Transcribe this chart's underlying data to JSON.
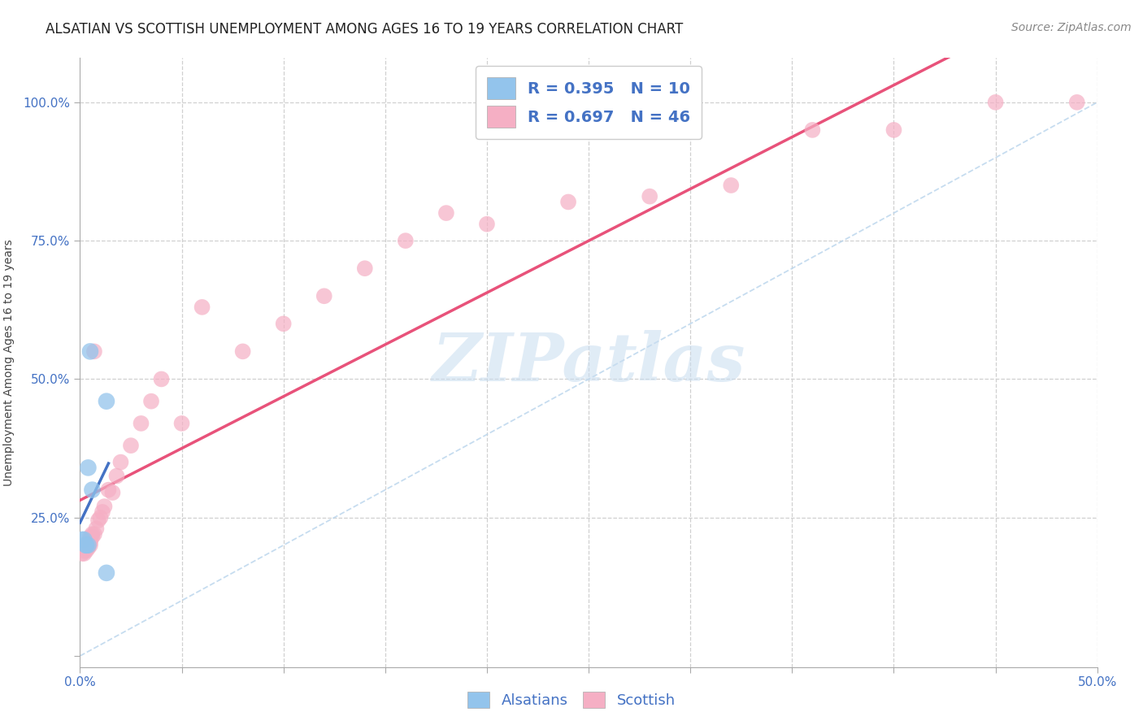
{
  "title": "ALSATIAN VS SCOTTISH UNEMPLOYMENT AMONG AGES 16 TO 19 YEARS CORRELATION CHART",
  "source": "Source: ZipAtlas.com",
  "ylabel": "Unemployment Among Ages 16 to 19 years",
  "xlim": [
    0.0,
    0.5
  ],
  "ylim": [
    -0.02,
    1.08
  ],
  "color_alsatian": "#93c4ec",
  "color_scottish": "#f5afc4",
  "color_alsatian_line": "#4472c4",
  "color_scottish_line": "#e8527a",
  "color_diag_line": "#b8d4ec",
  "color_text_blue": "#4472c4",
  "color_grid": "#d0d0d0",
  "background_color": "#ffffff",
  "legend_r_alsatian": "R = 0.395",
  "legend_n_alsatian": "N = 10",
  "legend_r_scottish": "R = 0.697",
  "legend_n_scottish": "N = 46",
  "watermark": "ZIPatlas",
  "title_fontsize": 12,
  "axis_label_fontsize": 10,
  "tick_fontsize": 11,
  "legend_fontsize": 14,
  "source_fontsize": 10,
  "alsatian_x": [
    0.001,
    0.002,
    0.003,
    0.003,
    0.004,
    0.004,
    0.005,
    0.006,
    0.013,
    0.013
  ],
  "alsatian_y": [
    0.21,
    0.21,
    0.2,
    0.2,
    0.34,
    0.2,
    0.55,
    0.3,
    0.46,
    0.15
  ],
  "scottish_x": [
    0.001,
    0.002,
    0.002,
    0.003,
    0.003,
    0.003,
    0.004,
    0.004,
    0.004,
    0.005,
    0.005,
    0.005,
    0.005,
    0.006,
    0.006,
    0.007,
    0.007,
    0.008,
    0.009,
    0.01,
    0.011,
    0.012,
    0.014,
    0.016,
    0.018,
    0.02,
    0.025,
    0.03,
    0.035,
    0.04,
    0.05,
    0.06,
    0.08,
    0.1,
    0.12,
    0.14,
    0.16,
    0.18,
    0.2,
    0.24,
    0.28,
    0.32,
    0.36,
    0.4,
    0.45,
    0.49
  ],
  "scottish_y": [
    0.185,
    0.19,
    0.185,
    0.19,
    0.2,
    0.195,
    0.195,
    0.2,
    0.2,
    0.2,
    0.205,
    0.21,
    0.215,
    0.215,
    0.22,
    0.55,
    0.22,
    0.23,
    0.245,
    0.25,
    0.26,
    0.27,
    0.3,
    0.295,
    0.325,
    0.35,
    0.38,
    0.42,
    0.46,
    0.5,
    0.42,
    0.63,
    0.55,
    0.6,
    0.65,
    0.7,
    0.75,
    0.8,
    0.78,
    0.82,
    0.83,
    0.85,
    0.95,
    0.95,
    1.0,
    1.0
  ]
}
